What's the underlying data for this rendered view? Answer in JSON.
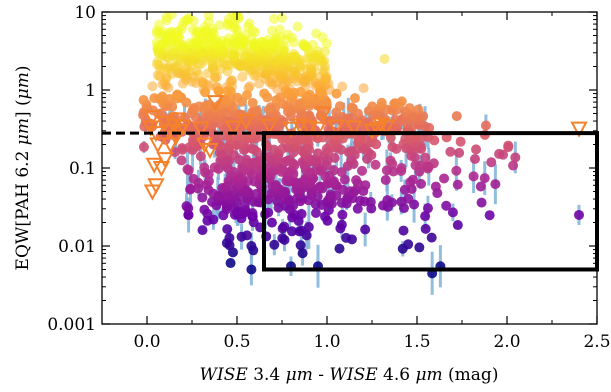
{
  "chart_data": {
    "type": "scatter",
    "title": "",
    "xlabel_parts": [
      {
        "text": "WISE",
        "italic": true
      },
      {
        "text": " 3.4 ",
        "italic": false
      },
      {
        "text": "μm",
        "italic": true
      },
      {
        "text": " - ",
        "italic": false
      },
      {
        "text": "WISE",
        "italic": true
      },
      {
        "text": " 4.6 ",
        "italic": false
      },
      {
        "text": "μm",
        "italic": true
      },
      {
        "text": " (mag)",
        "italic": false
      }
    ],
    "ylabel_parts": [
      {
        "text": "EQW[PAH 6.2 ",
        "italic": false
      },
      {
        "text": "μm",
        "italic": true
      },
      {
        "text": "] (",
        "italic": false
      },
      {
        "text": "μm",
        "italic": true
      },
      {
        "text": ")",
        "italic": false
      }
    ],
    "xlim": [
      -0.25,
      2.5
    ],
    "ylim": [
      0.001,
      10
    ],
    "yscale": "log",
    "grid": false,
    "legend": "none",
    "x_ticks": [
      0.0,
      0.5,
      1.0,
      1.5,
      2.0,
      2.5
    ],
    "x_tick_labels": [
      "0.0",
      "0.5",
      "1.0",
      "1.5",
      "2.0",
      "2.5"
    ],
    "y_ticks": [
      0.001,
      0.01,
      0.1,
      1,
      10
    ],
    "y_tick_labels": [
      "0.001",
      "0.01",
      "0.1",
      "1",
      "10"
    ],
    "dashed_line": {
      "y": 0.28,
      "x_from": -0.25,
      "x_to": 0.65,
      "color": "#000000"
    },
    "selection_box": {
      "x": [
        0.65,
        2.5
      ],
      "y": [
        0.005,
        0.28
      ],
      "color": "#000000"
    },
    "colors": {
      "errorbar": "#7fb3d8",
      "upper_limit_edge": "#f5812b",
      "colormap": [
        "#0d0887",
        "#6a00a8",
        "#b12a90",
        "#e16462",
        "#fca636",
        "#f0f921"
      ]
    },
    "upper_limits": [
      {
        "x": 0.02,
        "y": 0.33
      },
      {
        "x": 0.03,
        "y": 0.45
      },
      {
        "x": 0.05,
        "y": 0.28
      },
      {
        "x": 0.06,
        "y": 0.2
      },
      {
        "x": 0.04,
        "y": 0.11
      },
      {
        "x": 0.08,
        "y": 0.1
      },
      {
        "x": 0.1,
        "y": 0.13
      },
      {
        "x": 0.05,
        "y": 0.06
      },
      {
        "x": 0.03,
        "y": 0.05
      },
      {
        "x": 0.1,
        "y": 0.38
      },
      {
        "x": 0.12,
        "y": 0.3
      },
      {
        "x": 0.15,
        "y": 0.35
      },
      {
        "x": 0.17,
        "y": 0.42
      },
      {
        "x": 0.18,
        "y": 0.3
      },
      {
        "x": 0.13,
        "y": 0.2
      },
      {
        "x": 0.16,
        "y": 0.25
      },
      {
        "x": 0.2,
        "y": 0.34
      },
      {
        "x": 0.3,
        "y": 0.32
      },
      {
        "x": 0.32,
        "y": 0.2
      },
      {
        "x": 0.35,
        "y": 0.17
      },
      {
        "x": 0.38,
        "y": 0.7
      },
      {
        "x": 0.48,
        "y": 0.33
      },
      {
        "x": 0.55,
        "y": 0.4
      },
      {
        "x": 0.68,
        "y": 0.35
      },
      {
        "x": 0.8,
        "y": 0.32
      },
      {
        "x": 0.85,
        "y": 0.35
      },
      {
        "x": 0.9,
        "y": 0.33
      },
      {
        "x": 0.95,
        "y": 0.32
      },
      {
        "x": 0.98,
        "y": 0.5
      },
      {
        "x": 1.05,
        "y": 0.34
      },
      {
        "x": 1.15,
        "y": 0.33
      },
      {
        "x": 1.25,
        "y": 0.3
      },
      {
        "x": 1.28,
        "y": 0.32
      },
      {
        "x": 1.3,
        "y": 0.36
      },
      {
        "x": 1.33,
        "y": 0.34
      },
      {
        "x": 2.4,
        "y": 0.32
      }
    ],
    "highlighted_points": [
      {
        "x": 0.58,
        "y": 0.005
      },
      {
        "x": 0.58,
        "y": 0.01
      },
      {
        "x": 0.8,
        "y": 0.0055
      },
      {
        "x": 0.95,
        "y": 0.0055
      },
      {
        "x": 1.63,
        "y": 0.0055
      },
      {
        "x": 2.4,
        "y": 0.025
      },
      {
        "x": 0.36,
        "y": 2.5
      },
      {
        "x": 0.6,
        "y": 5.5
      },
      {
        "x": 1.32,
        "y": 2.5
      }
    ]
  }
}
